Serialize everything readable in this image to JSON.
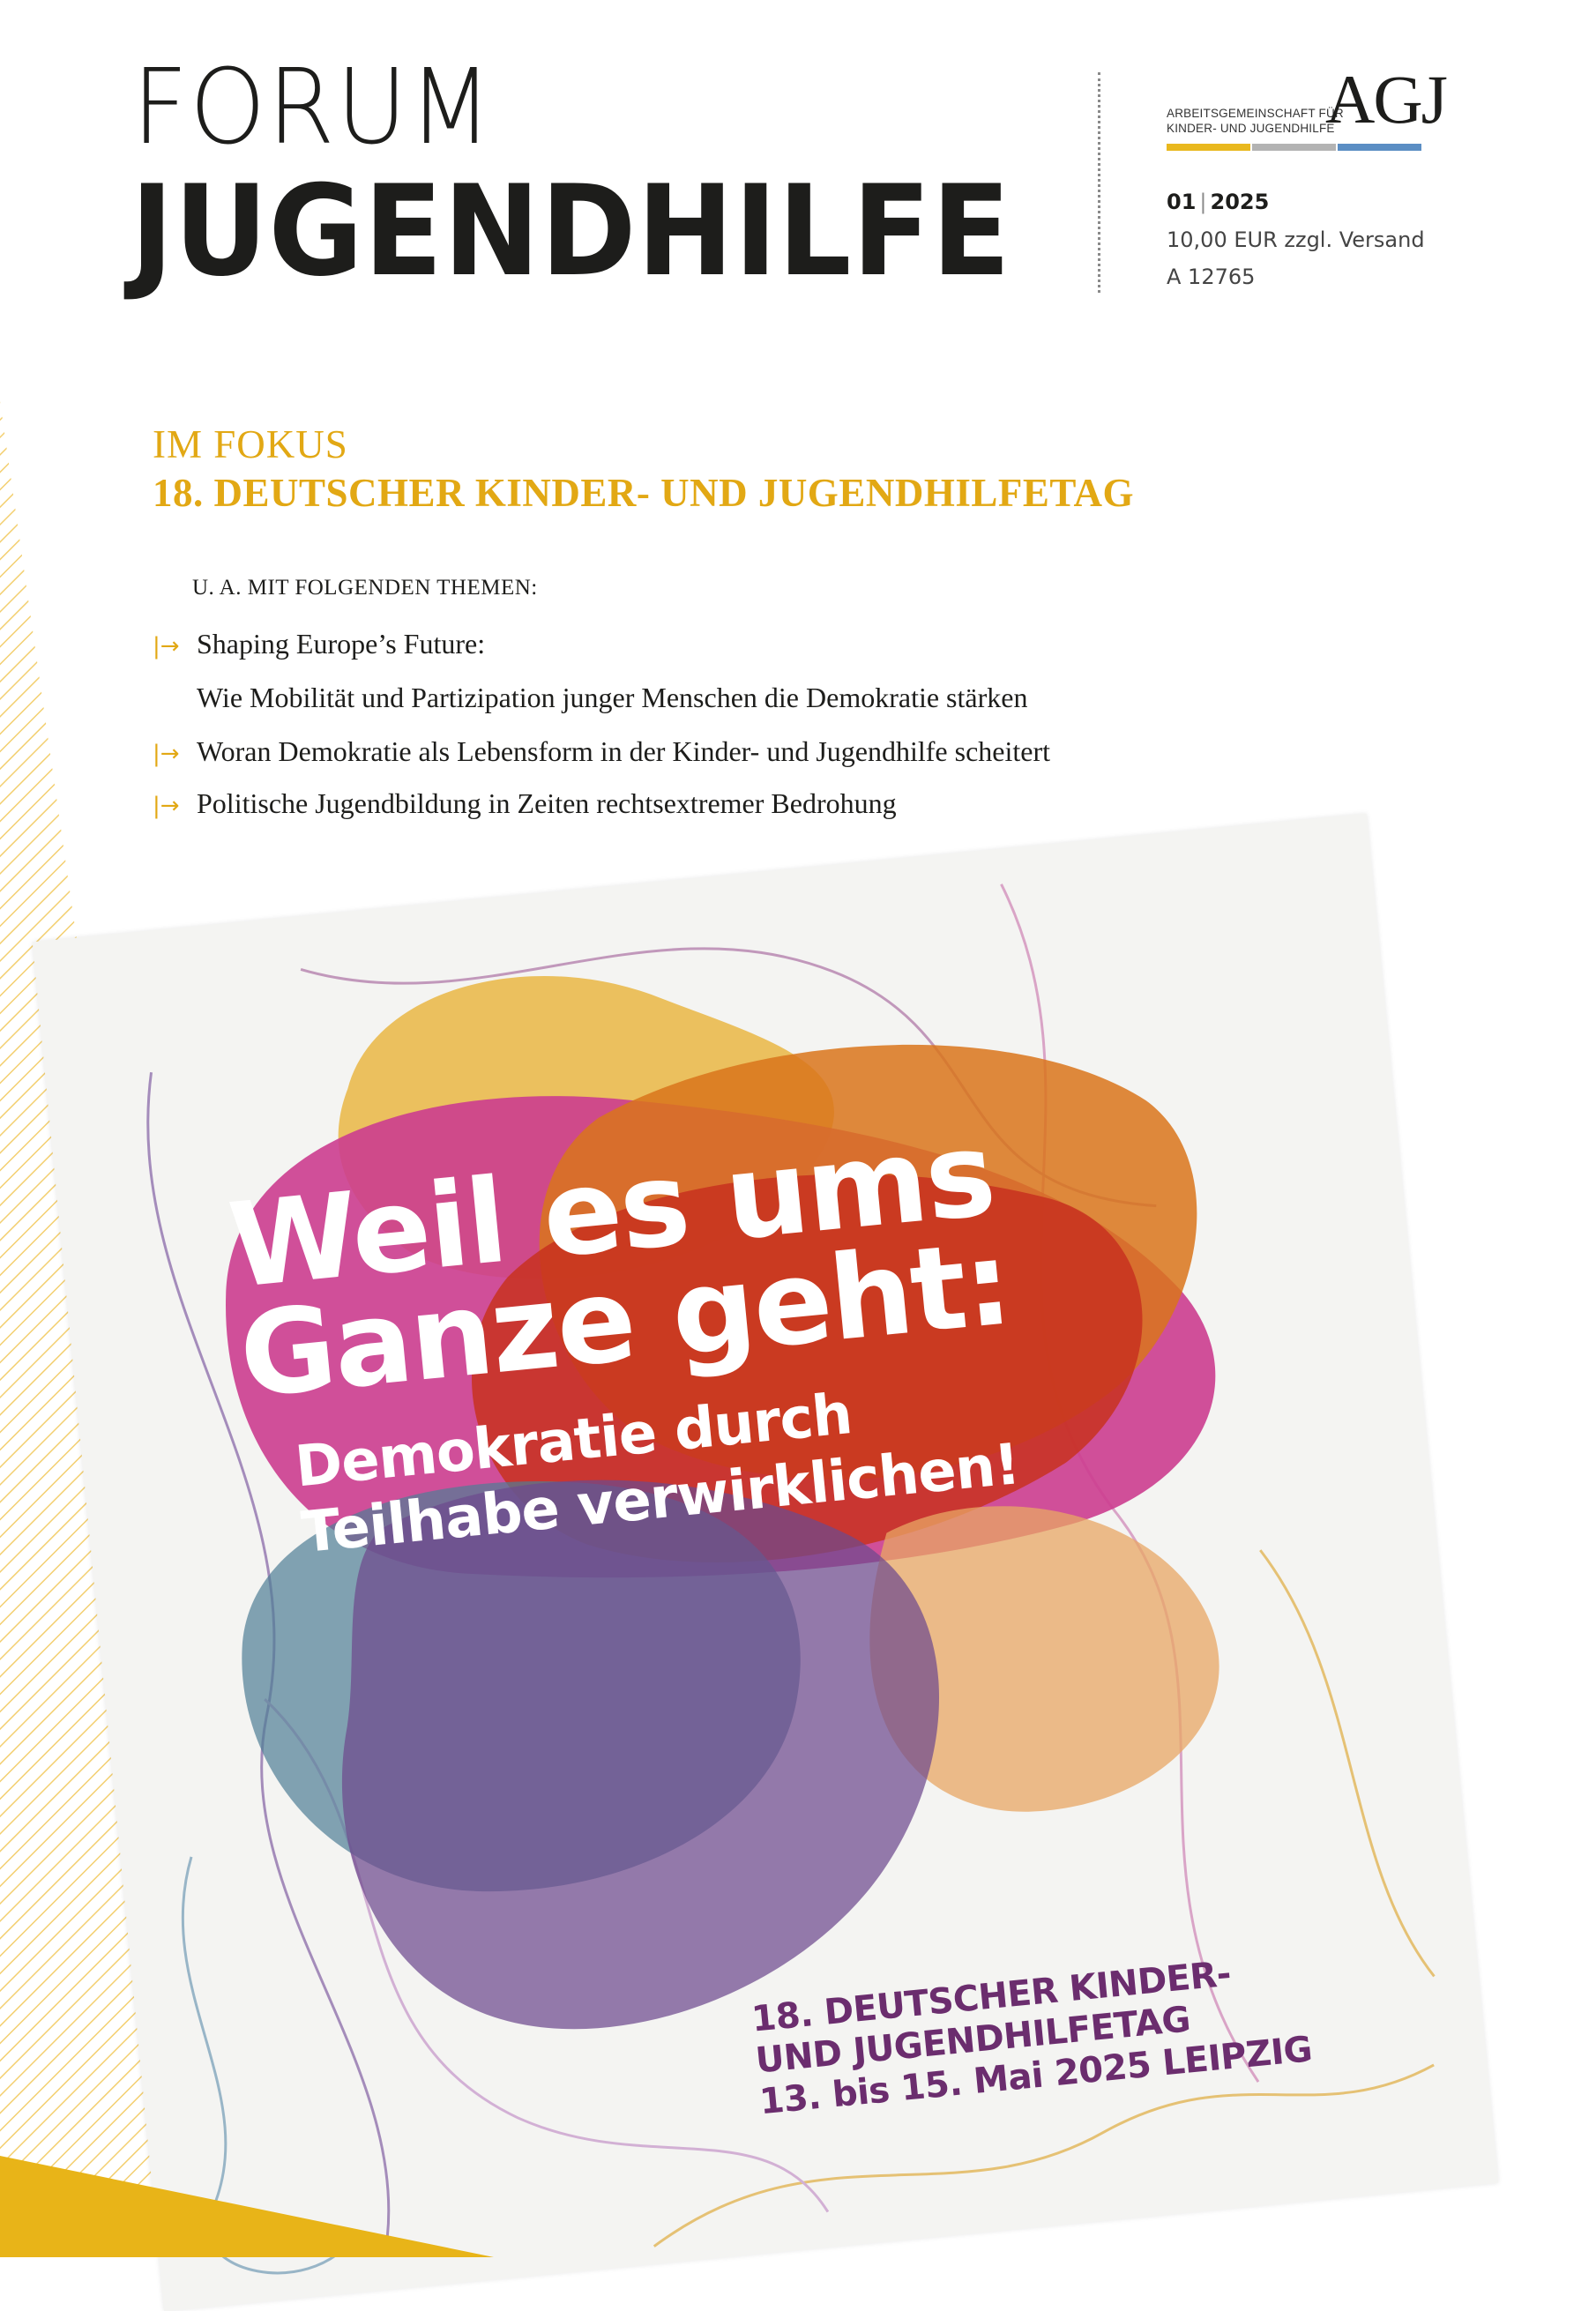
{
  "masthead": {
    "line1": "FORUM",
    "line2": "JUGENDHILFE"
  },
  "publisher": {
    "name_line1": "Arbeitsgemeinschaft für",
    "name_line2": "Kinder- und Jugendhilfe",
    "logo": "AGJ",
    "bar_colors": [
      "#e9b81e",
      "#b3b3b3",
      "#5b8ec4"
    ]
  },
  "issue": {
    "number": "01",
    "separator": "|",
    "year": "2025",
    "price": "10,00 EUR zzgl. Versand",
    "id": "A 12765"
  },
  "focus": {
    "kicker": "IM FOKUS",
    "title": "18. DEUTSCHER KINDER- UND JUGENDHILFETAG",
    "intro": "U. A. MIT FOLGENDEN THEMEN:",
    "topics": [
      {
        "line1": "Shaping Europe’s Future:",
        "line2": "Wie Mobilität und Partizipation junger Menschen die Demokratie stärken"
      },
      {
        "line1": "Woran Demokratie als Lebensform in der Kinder- und Jugendhilfe scheitert"
      },
      {
        "line1": "Politische Jugendbildung in Zeiten rechtsextremer Bedrohung"
      }
    ],
    "arrow_icon": "arrow-right-icon",
    "accent_color": "#e2a814"
  },
  "poster": {
    "headline_line1": "Weil es ums",
    "headline_line2": "Ganze geht:",
    "sub_line1": "Demokratie durch",
    "sub_line2": "Teilhabe verwirklichen!",
    "event_line1": "18. DEUTSCHER KINDER-",
    "event_line2": "UND JUGENDHILFETAG",
    "event_line3": "13. bis 15. Mai 2025 LEIPZIG",
    "colors": {
      "magenta": "#cc3d8f",
      "orange": "#d9741b",
      "yellow": "#e9b644",
      "red": "#c8311e",
      "blue": "#4f7d96",
      "purple": "#6e4a8e",
      "event_text": "#6b2d6e"
    }
  },
  "decor": {
    "bottom_band_color": "#e8b418",
    "stripe_color": "#f1c757"
  }
}
